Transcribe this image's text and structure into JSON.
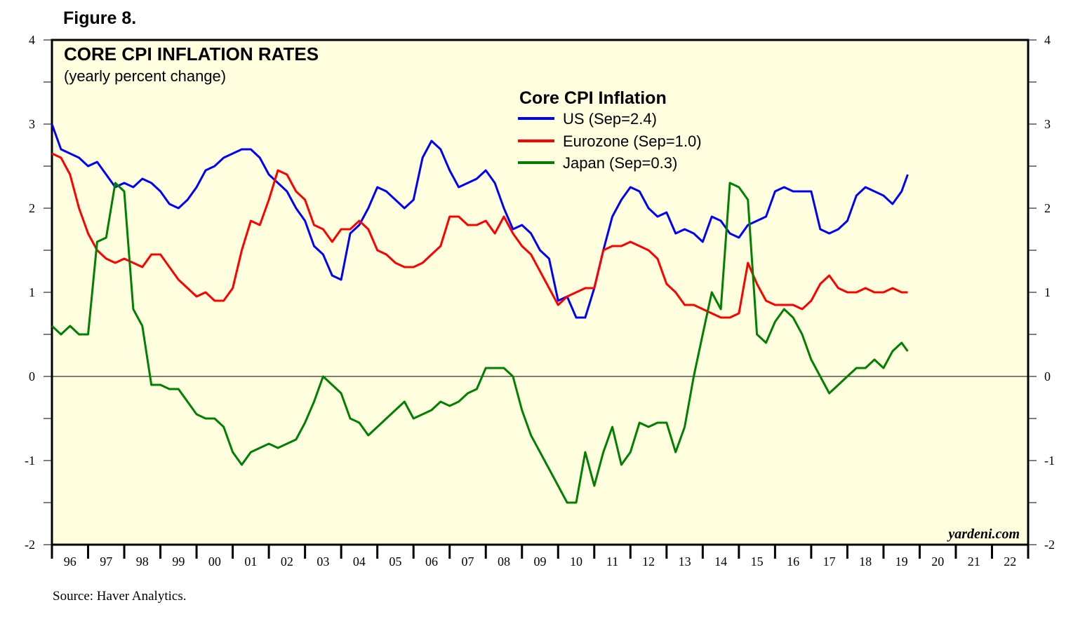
{
  "figure_label": "Figure 8.",
  "source": "Source: Haver Analytics.",
  "watermark": "yardeni.com",
  "chart_data": {
    "type": "line",
    "title": "CORE CPI INFLATION RATES",
    "subtitle": "(yearly percent change)",
    "xlabel": "",
    "ylabel": "",
    "ylim": [
      -2,
      4
    ],
    "xlim": [
      1996,
      2023
    ],
    "yticks": [
      -2,
      -1,
      0,
      1,
      2,
      3,
      4
    ],
    "x_tick_labels": [
      "96",
      "97",
      "98",
      "99",
      "00",
      "01",
      "02",
      "03",
      "04",
      "05",
      "06",
      "07",
      "08",
      "09",
      "10",
      "11",
      "12",
      "13",
      "14",
      "15",
      "16",
      "17",
      "18",
      "19",
      "20",
      "21",
      "22"
    ],
    "zero_line": true,
    "legend": {
      "title": "Core CPI Inflation",
      "placement": "top-center"
    },
    "series": [
      {
        "name": "US (Sep=2.4)",
        "color": "#0000ff",
        "x": [
          1996.0,
          1996.25,
          1996.5,
          1996.75,
          1997.0,
          1997.25,
          1997.5,
          1997.75,
          1998.0,
          1998.25,
          1998.5,
          1998.75,
          1999.0,
          1999.25,
          1999.5,
          1999.75,
          2000.0,
          2000.25,
          2000.5,
          2000.75,
          2001.0,
          2001.25,
          2001.5,
          2001.75,
          2002.0,
          2002.25,
          2002.5,
          2002.75,
          2003.0,
          2003.25,
          2003.5,
          2003.75,
          2004.0,
          2004.25,
          2004.5,
          2004.75,
          2005.0,
          2005.25,
          2005.5,
          2005.75,
          2006.0,
          2006.25,
          2006.5,
          2006.75,
          2007.0,
          2007.25,
          2007.5,
          2007.75,
          2008.0,
          2008.25,
          2008.5,
          2008.75,
          2009.0,
          2009.25,
          2009.5,
          2009.75,
          2010.0,
          2010.25,
          2010.5,
          2010.75,
          2011.0,
          2011.25,
          2011.5,
          2011.75,
          2012.0,
          2012.25,
          2012.5,
          2012.75,
          2013.0,
          2013.25,
          2013.5,
          2013.75,
          2014.0,
          2014.25,
          2014.5,
          2014.75,
          2015.0,
          2015.25,
          2015.5,
          2015.75,
          2016.0,
          2016.25,
          2016.5,
          2016.75,
          2017.0,
          2017.25,
          2017.5,
          2017.75,
          2018.0,
          2018.25,
          2018.5,
          2018.75,
          2019.0,
          2019.25,
          2019.5,
          2019.67
        ],
        "values": [
          3.0,
          2.7,
          2.65,
          2.6,
          2.5,
          2.55,
          2.4,
          2.25,
          2.3,
          2.25,
          2.35,
          2.3,
          2.2,
          2.05,
          2.0,
          2.1,
          2.25,
          2.45,
          2.5,
          2.6,
          2.65,
          2.7,
          2.7,
          2.6,
          2.4,
          2.3,
          2.2,
          2.0,
          1.85,
          1.55,
          1.45,
          1.2,
          1.15,
          1.7,
          1.8,
          2.0,
          2.25,
          2.2,
          2.1,
          2.0,
          2.1,
          2.6,
          2.8,
          2.7,
          2.45,
          2.25,
          2.3,
          2.35,
          2.45,
          2.3,
          2.0,
          1.75,
          1.8,
          1.7,
          1.5,
          1.4,
          0.9,
          0.95,
          0.7,
          0.7,
          1.05,
          1.5,
          1.9,
          2.1,
          2.25,
          2.2,
          2.0,
          1.9,
          1.95,
          1.7,
          1.75,
          1.7,
          1.6,
          1.9,
          1.85,
          1.7,
          1.65,
          1.8,
          1.85,
          1.9,
          2.2,
          2.25,
          2.2,
          2.2,
          2.2,
          1.75,
          1.7,
          1.75,
          1.85,
          2.15,
          2.25,
          2.2,
          2.15,
          2.05,
          2.2,
          2.4
        ]
      },
      {
        "name": "Eurozone (Sep=1.0)",
        "color": "#ff0000",
        "x": [
          1996.0,
          1996.25,
          1996.5,
          1996.75,
          1997.0,
          1997.25,
          1997.5,
          1997.75,
          1998.0,
          1998.25,
          1998.5,
          1998.75,
          1999.0,
          1999.25,
          1999.5,
          1999.75,
          2000.0,
          2000.25,
          2000.5,
          2000.75,
          2001.0,
          2001.25,
          2001.5,
          2001.75,
          2002.0,
          2002.25,
          2002.5,
          2002.75,
          2003.0,
          2003.25,
          2003.5,
          2003.75,
          2004.0,
          2004.25,
          2004.5,
          2004.75,
          2005.0,
          2005.25,
          2005.5,
          2005.75,
          2006.0,
          2006.25,
          2006.5,
          2006.75,
          2007.0,
          2007.25,
          2007.5,
          2007.75,
          2008.0,
          2008.25,
          2008.5,
          2008.75,
          2009.0,
          2009.25,
          2009.5,
          2009.75,
          2010.0,
          2010.25,
          2010.5,
          2010.75,
          2011.0,
          2011.25,
          2011.5,
          2011.75,
          2012.0,
          2012.25,
          2012.5,
          2012.75,
          2013.0,
          2013.25,
          2013.5,
          2013.75,
          2014.0,
          2014.25,
          2014.5,
          2014.75,
          2015.0,
          2015.25,
          2015.5,
          2015.75,
          2016.0,
          2016.25,
          2016.5,
          2016.75,
          2017.0,
          2017.25,
          2017.5,
          2017.75,
          2018.0,
          2018.25,
          2018.5,
          2018.75,
          2019.0,
          2019.25,
          2019.5,
          2019.67
        ],
        "values": [
          2.65,
          2.6,
          2.4,
          2.0,
          1.7,
          1.5,
          1.4,
          1.35,
          1.4,
          1.35,
          1.3,
          1.45,
          1.45,
          1.3,
          1.15,
          1.05,
          0.95,
          1.0,
          0.9,
          0.9,
          1.05,
          1.5,
          1.85,
          1.8,
          2.1,
          2.45,
          2.4,
          2.2,
          2.1,
          1.8,
          1.75,
          1.6,
          1.75,
          1.75,
          1.85,
          1.75,
          1.5,
          1.45,
          1.35,
          1.3,
          1.3,
          1.35,
          1.45,
          1.55,
          1.9,
          1.9,
          1.8,
          1.8,
          1.85,
          1.7,
          1.9,
          1.7,
          1.55,
          1.45,
          1.25,
          1.05,
          0.85,
          0.95,
          1.0,
          1.05,
          1.05,
          1.5,
          1.55,
          1.55,
          1.6,
          1.55,
          1.5,
          1.4,
          1.1,
          1.0,
          0.85,
          0.85,
          0.8,
          0.75,
          0.7,
          0.7,
          0.75,
          1.35,
          1.1,
          0.9,
          0.85,
          0.85,
          0.85,
          0.8,
          0.9,
          1.1,
          1.2,
          1.05,
          1.0,
          1.0,
          1.05,
          1.0,
          1.0,
          1.05,
          1.0,
          1.0
        ]
      },
      {
        "name": "Japan (Sep=0.3)",
        "color": "#008000",
        "x": [
          1996.0,
          1996.25,
          1996.5,
          1996.75,
          1997.0,
          1997.25,
          1997.5,
          1997.75,
          1998.0,
          1998.25,
          1998.5,
          1998.75,
          1999.0,
          1999.25,
          1999.5,
          1999.75,
          2000.0,
          2000.25,
          2000.5,
          2000.75,
          2001.0,
          2001.25,
          2001.5,
          2001.75,
          2002.0,
          2002.25,
          2002.5,
          2002.75,
          2003.0,
          2003.25,
          2003.5,
          2003.75,
          2004.0,
          2004.25,
          2004.5,
          2004.75,
          2005.0,
          2005.25,
          2005.5,
          2005.75,
          2006.0,
          2006.25,
          2006.5,
          2006.75,
          2007.0,
          2007.25,
          2007.5,
          2007.75,
          2008.0,
          2008.25,
          2008.5,
          2008.75,
          2009.0,
          2009.25,
          2009.5,
          2009.75,
          2010.0,
          2010.25,
          2010.5,
          2010.75,
          2011.0,
          2011.25,
          2011.5,
          2011.75,
          2012.0,
          2012.25,
          2012.5,
          2012.75,
          2013.0,
          2013.25,
          2013.5,
          2013.75,
          2014.0,
          2014.25,
          2014.5,
          2014.75,
          2015.0,
          2015.25,
          2015.5,
          2015.75,
          2016.0,
          2016.25,
          2016.5,
          2016.75,
          2017.0,
          2017.25,
          2017.5,
          2017.75,
          2018.0,
          2018.25,
          2018.5,
          2018.75,
          2019.0,
          2019.25,
          2019.5,
          2019.67
        ],
        "values": [
          0.6,
          0.5,
          0.6,
          0.5,
          0.5,
          1.6,
          1.65,
          2.3,
          2.2,
          0.8,
          0.6,
          -0.1,
          -0.1,
          -0.15,
          -0.15,
          -0.3,
          -0.45,
          -0.5,
          -0.5,
          -0.6,
          -0.9,
          -1.05,
          -0.9,
          -0.85,
          -0.8,
          -0.85,
          -0.8,
          -0.75,
          -0.55,
          -0.3,
          0.0,
          -0.1,
          -0.2,
          -0.5,
          -0.55,
          -0.7,
          -0.6,
          -0.5,
          -0.4,
          -0.3,
          -0.5,
          -0.45,
          -0.4,
          -0.3,
          -0.35,
          -0.3,
          -0.2,
          -0.15,
          0.1,
          0.1,
          0.1,
          0.0,
          -0.4,
          -0.7,
          -0.9,
          -1.1,
          -1.3,
          -1.5,
          -1.5,
          -0.9,
          -1.3,
          -0.9,
          -0.6,
          -1.05,
          -0.9,
          -0.55,
          -0.6,
          -0.55,
          -0.55,
          -0.9,
          -0.6,
          0.0,
          0.5,
          1.0,
          0.8,
          2.3,
          2.25,
          2.1,
          0.5,
          0.4,
          0.65,
          0.8,
          0.7,
          0.5,
          0.2,
          0.0,
          -0.2,
          -0.1,
          0.0,
          0.1,
          0.1,
          0.2,
          0.1,
          0.3,
          0.4,
          0.3
        ]
      }
    ]
  }
}
